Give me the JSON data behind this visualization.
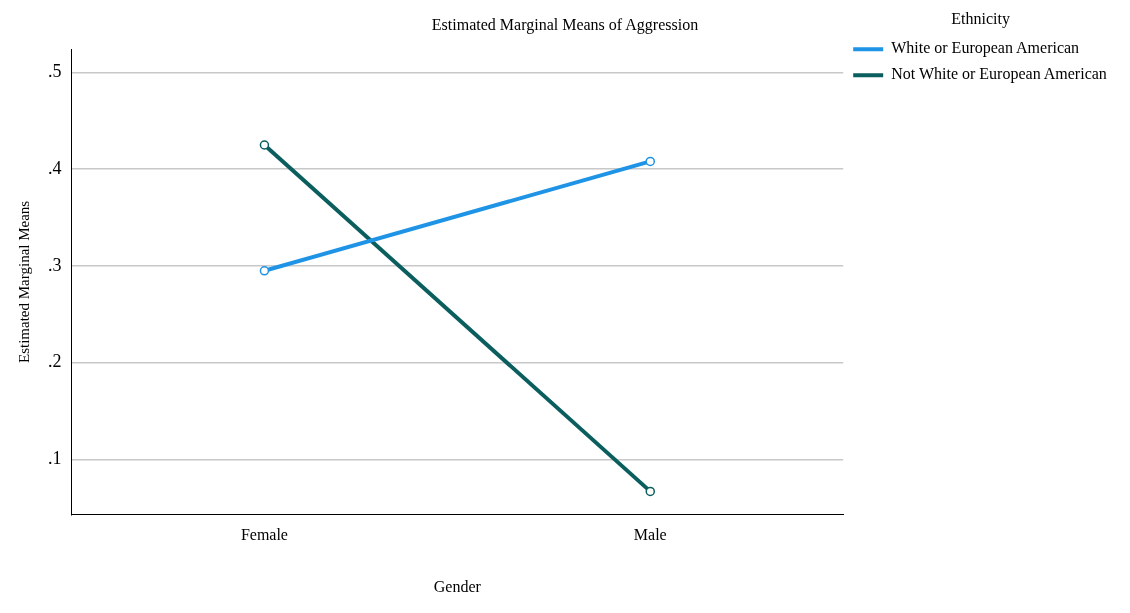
{
  "chart_data": {
    "type": "line",
    "title": "Estimated Marginal Means of Aggression",
    "xlabel": "Gender",
    "ylabel": "Estimated Marginal Means",
    "legend_title": "Ethnicity",
    "categories": [
      "Female",
      "Male"
    ],
    "series": [
      {
        "name": "White or European American",
        "color": "#1f94e6",
        "values": [
          0.295,
          0.408
        ]
      },
      {
        "name": "Not White or European American",
        "color": "#0b5e5e",
        "values": [
          0.425,
          0.067
        ]
      }
    ],
    "ylim": [
      0.043,
      0.524
    ],
    "yticks": [
      {
        "value": 0.1,
        "label": ".1"
      },
      {
        "value": 0.2,
        "label": ".2"
      },
      {
        "value": 0.3,
        "label": ".3"
      },
      {
        "value": 0.4,
        "label": ".4"
      },
      {
        "value": 0.5,
        "label": ".5"
      }
    ],
    "grid": "y",
    "legend": "top right",
    "marker": "circle",
    "line_style": "solid"
  }
}
